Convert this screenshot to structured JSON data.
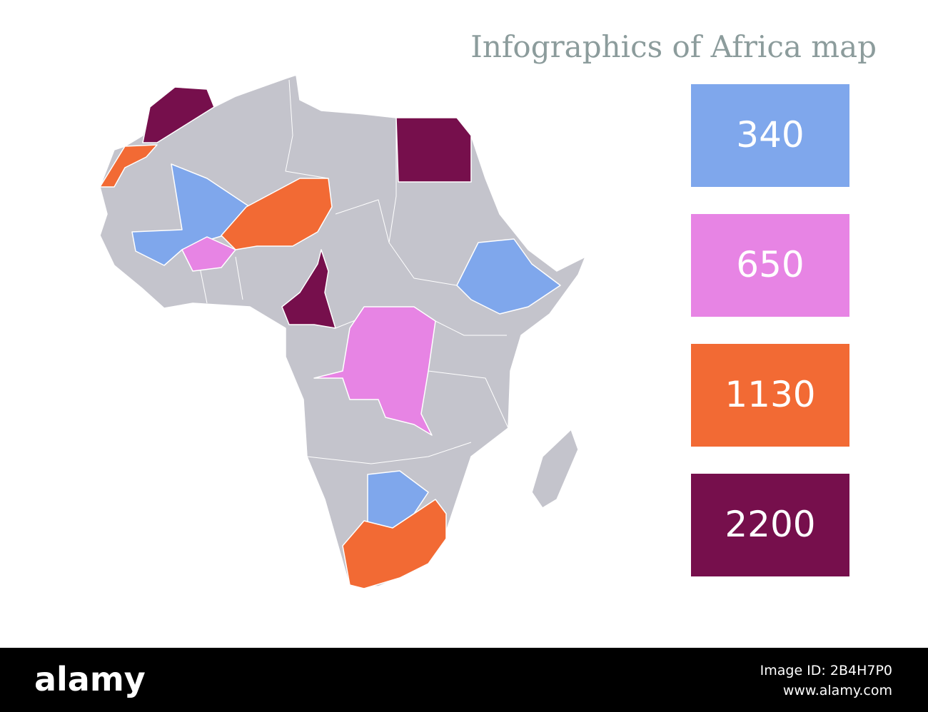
{
  "title": "Infographics of Africa map",
  "legend": [
    {
      "value": 340,
      "color": "#7fa7ec"
    },
    {
      "value": 650,
      "color": "#e784e4"
    },
    {
      "value": 1130,
      "color": "#f26a34"
    },
    {
      "value": 2200,
      "color": "#760f4c"
    }
  ],
  "base_color": "#c4c4cc",
  "footer": {
    "brand": "alamy",
    "image_id": "Image ID: 2B4H7P0",
    "url": "www.alamy.com"
  }
}
